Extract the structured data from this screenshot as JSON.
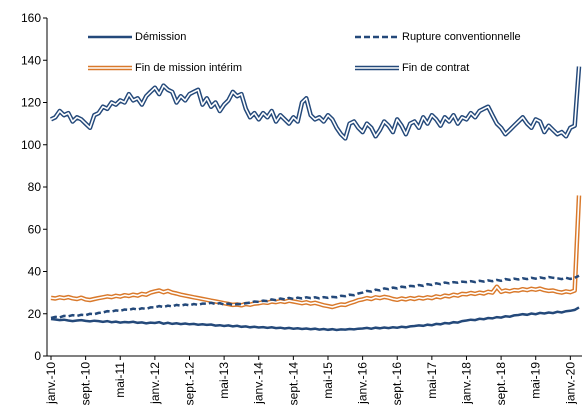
{
  "chart_data": {
    "type": "line",
    "categories": [
      "janv.-10",
      null,
      null,
      null,
      null,
      null,
      null,
      null,
      "sept.-10",
      null,
      null,
      null,
      null,
      null,
      null,
      null,
      "mai-11",
      null,
      null,
      null,
      null,
      null,
      null,
      null,
      "janv.-12",
      null,
      null,
      null,
      null,
      null,
      null,
      null,
      "sept.-12",
      null,
      null,
      null,
      null,
      null,
      null,
      null,
      "mai-13",
      null,
      null,
      null,
      null,
      null,
      null,
      null,
      "janv.-14",
      null,
      null,
      null,
      null,
      null,
      null,
      null,
      "sept.-14",
      null,
      null,
      null,
      null,
      null,
      null,
      null,
      "mai-15",
      null,
      null,
      null,
      null,
      null,
      null,
      null,
      "janv.-16",
      null,
      null,
      null,
      null,
      null,
      null,
      null,
      "sept.-16",
      null,
      null,
      null,
      null,
      null,
      null,
      null,
      "mai-17",
      null,
      null,
      null,
      null,
      null,
      null,
      null,
      "janv.-18",
      null,
      null,
      null,
      null,
      null,
      null,
      null,
      "sept.-18",
      null,
      null,
      null,
      null,
      null,
      null,
      null,
      "mai-19",
      null,
      null,
      null,
      null,
      null,
      null,
      null,
      "janv.-20",
      null,
      null
    ],
    "series": [
      {
        "name": "Démission",
        "color": "#24497a",
        "style": "solid",
        "values": [
          17.5,
          17.3,
          17,
          17.2,
          16.8,
          16.5,
          16.8,
          17,
          16.6,
          16.4,
          16.7,
          16.5,
          16.2,
          16.5,
          16,
          16.3,
          15.8,
          16.1,
          15.9,
          16.2,
          15.7,
          15.9,
          15.5,
          15.8,
          15.6,
          16,
          15.3,
          15.7,
          15.2,
          15.5,
          15.1,
          15.4,
          15,
          15.2,
          14.8,
          15,
          14.7,
          14.9,
          14.4,
          14.6,
          14.2,
          14.5,
          14,
          14.3,
          13.8,
          14,
          13.6,
          13.8,
          13.5,
          13.7,
          13.3,
          13.6,
          13.2,
          13.4,
          13,
          13.3,
          12.9,
          13.1,
          12.8,
          13,
          12.7,
          12.9,
          12.5,
          12.8,
          12.4,
          12.7,
          12.3,
          12.6,
          12.5,
          12.8,
          12.6,
          12.9,
          13,
          13.3,
          12.9,
          13.4,
          13.1,
          13.5,
          13.2,
          13.6,
          13.4,
          13.8,
          13.6,
          14,
          14.2,
          14.5,
          14.3,
          14.8,
          14.6,
          15.2,
          15,
          15.6,
          15.4,
          16,
          15.8,
          16.5,
          16.8,
          17.2,
          17,
          17.6,
          17.4,
          18,
          17.8,
          18.4,
          18.2,
          18.8,
          18.6,
          19.2,
          19.4,
          19.8,
          19.5,
          20.1,
          19.8,
          20.4,
          20.1,
          20.6,
          20.3,
          20.9,
          20.6,
          21.2,
          21.4,
          21.8,
          23
        ]
      },
      {
        "name": "Rupture conventionnelle",
        "color": "#24497a",
        "style": "dashed",
        "values": [
          18,
          18.5,
          18.3,
          19,
          18.8,
          19.3,
          19,
          19.5,
          19.3,
          20,
          19.8,
          20.4,
          20.6,
          21.2,
          21,
          21.6,
          21.3,
          22,
          21.8,
          22.4,
          22,
          22.6,
          22.3,
          23,
          23,
          23.6,
          23.2,
          23.8,
          23.5,
          24.2,
          23.8,
          24.4,
          24,
          24.6,
          24.2,
          24.8,
          24.8,
          25.2,
          24.6,
          25,
          24.4,
          24.8,
          24.2,
          24.6,
          24.5,
          25,
          25.3,
          25.8,
          25.6,
          26.2,
          26,
          26.8,
          26.4,
          27.2,
          26.8,
          27.5,
          27,
          27.6,
          27.2,
          27.8,
          27.4,
          27.8,
          27.3,
          27.9,
          27.5,
          28,
          27.8,
          28.5,
          28.3,
          29,
          28.8,
          29.6,
          30,
          30.8,
          30.5,
          31.4,
          31,
          32,
          31.6,
          32.4,
          32,
          32.8,
          32.5,
          33.2,
          33,
          33.6,
          33.2,
          34,
          33.6,
          34.4,
          34,
          34.8,
          34.4,
          35,
          34.7,
          35.2,
          35,
          35.4,
          35,
          35.6,
          35.2,
          35.8,
          35.4,
          36,
          35.6,
          36.4,
          36,
          36.6,
          36.2,
          36.8,
          36.4,
          37,
          36.6,
          37.2,
          36.8,
          37.4,
          37,
          36.8,
          36.4,
          37,
          36.5,
          37,
          38
        ]
      },
      {
        "name": "Fin de mission intérim",
        "color": "#d9792b",
        "style": "double",
        "values": [
          27.5,
          27.2,
          27.8,
          27.4,
          27.9,
          27.3,
          27,
          27.6,
          26.8,
          26.5,
          27,
          27.4,
          27.8,
          28.2,
          27.9,
          28.5,
          28.1,
          28.8,
          28.4,
          29,
          28.6,
          29.4,
          29,
          30,
          30.6,
          31,
          30.2,
          30.8,
          30,
          29.6,
          29,
          28.6,
          28.2,
          27.8,
          27.4,
          27,
          26.6,
          26.2,
          25.8,
          25.4,
          25,
          24.6,
          24.2,
          24.4,
          24,
          24.6,
          24.3,
          24.8,
          25,
          25.4,
          25.2,
          25.8,
          25.5,
          26,
          25.6,
          26.2,
          25.8,
          25.4,
          25,
          25.4,
          24.8,
          25.2,
          24.6,
          24,
          23.6,
          23.2,
          23.8,
          24.4,
          24.2,
          25,
          25.6,
          26.4,
          26.8,
          27.4,
          27,
          27.8,
          27.4,
          28,
          27.6,
          27,
          26.6,
          27.2,
          26.8,
          27.4,
          27,
          27.6,
          27.2,
          27.8,
          27.4,
          28.2,
          27.8,
          28.6,
          28.2,
          29,
          28.6,
          29.4,
          29.2,
          29.8,
          29.4,
          30,
          29.6,
          30.4,
          30,
          32.8,
          30.4,
          31,
          30.6,
          31.2,
          31,
          31.6,
          31.2,
          31.8,
          31.4,
          31.9,
          31.2,
          30.8,
          31,
          30.4,
          30,
          30.6,
          30.2,
          31,
          76
        ]
      },
      {
        "name": "Fin de contrat",
        "color": "#24497a",
        "style": "double",
        "values": [
          112,
          113,
          116,
          114,
          115,
          111,
          113,
          112,
          110,
          108,
          114,
          115,
          118,
          117,
          120,
          119,
          121,
          120,
          124,
          121,
          122,
          119,
          123,
          125,
          127,
          124,
          128,
          126,
          125,
          120,
          123,
          121,
          124,
          125,
          126,
          119,
          122,
          118,
          120,
          116,
          119,
          121,
          125,
          123,
          124,
          117,
          113,
          115,
          112,
          115,
          113,
          116,
          111,
          114,
          112,
          110,
          113,
          111,
          120,
          122,
          114,
          112,
          113,
          111,
          114,
          112,
          108,
          105,
          103,
          110,
          111,
          108,
          106,
          110,
          108,
          104,
          107,
          111,
          109,
          106,
          112,
          109,
          105,
          110,
          111,
          108,
          113,
          110,
          114,
          112,
          109,
          113,
          111,
          114,
          110,
          113,
          112,
          115,
          113,
          116,
          117,
          118,
          114,
          110,
          108,
          105,
          107,
          109,
          111,
          113,
          110,
          108,
          112,
          111,
          106,
          109,
          107,
          105,
          106,
          104,
          108,
          109,
          137
        ]
      }
    ],
    "ylim": [
      0,
      160
    ],
    "yticks": [
      0,
      20,
      40,
      60,
      80,
      100,
      120,
      140,
      160
    ],
    "grid": false
  }
}
